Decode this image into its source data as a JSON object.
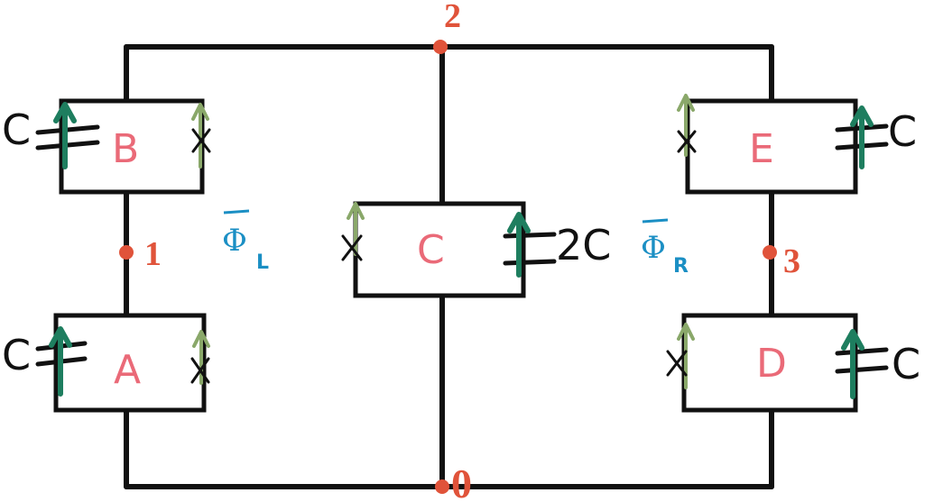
{
  "nodes": {
    "n0": "0",
    "n1": "1",
    "n2": "2",
    "n3": "3"
  },
  "boxes": {
    "A": "A",
    "B": "B",
    "C": "C",
    "D": "D",
    "E": "E"
  },
  "capacitances": {
    "A": "C",
    "B": "C",
    "C": "2C",
    "D": "C",
    "E": "C"
  },
  "fluxes": {
    "left": {
      "symbol": "Φ",
      "sub": "L"
    },
    "right": {
      "symbol": "Φ",
      "sub": "R"
    }
  },
  "colors": {
    "node": "#e0533a",
    "box_label": "#ea6a78",
    "flux": "#1b8fc4",
    "arrow_dark": "#1e7e5f",
    "arrow_light": "#8aa86a"
  }
}
